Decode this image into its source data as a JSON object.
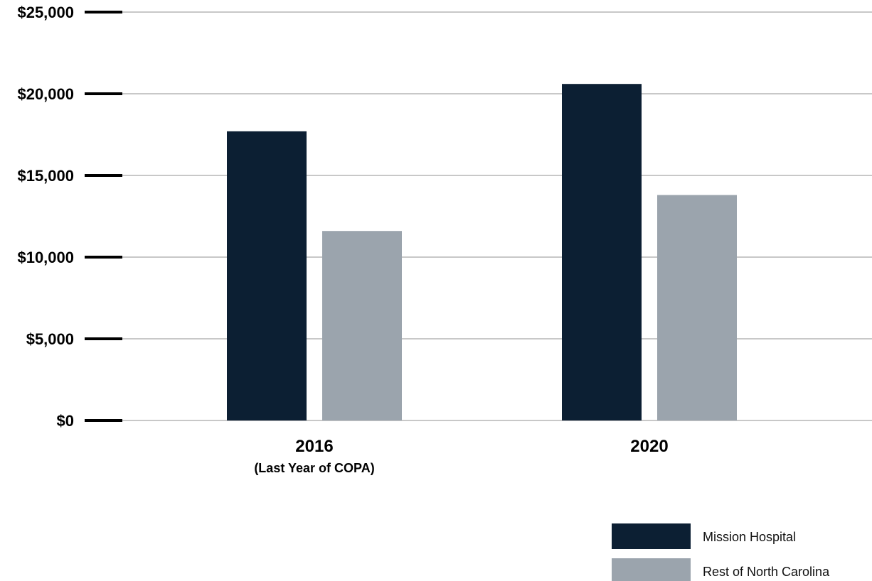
{
  "chart_data": {
    "type": "bar",
    "categories": [
      "2016",
      "2020"
    ],
    "category_sublabels": [
      "(Last Year of COPA)",
      ""
    ],
    "series": [
      {
        "name": "Mission Hospital",
        "values": [
          17700,
          20600
        ],
        "color": "#0c1f33"
      },
      {
        "name": "Rest of North Carolina",
        "values": [
          11600,
          13800
        ],
        "color": "#9ba4ad"
      }
    ],
    "ylim": [
      0,
      25000
    ],
    "yticks": [
      0,
      5000,
      10000,
      15000,
      20000,
      25000
    ],
    "ytick_labels": [
      "$0",
      "$5,000",
      "$10,000",
      "$15,000",
      "$20,000",
      "$25,000"
    ],
    "title": "",
    "xlabel": "",
    "ylabel": "",
    "grid": true,
    "legend_position": "bottom-right"
  }
}
